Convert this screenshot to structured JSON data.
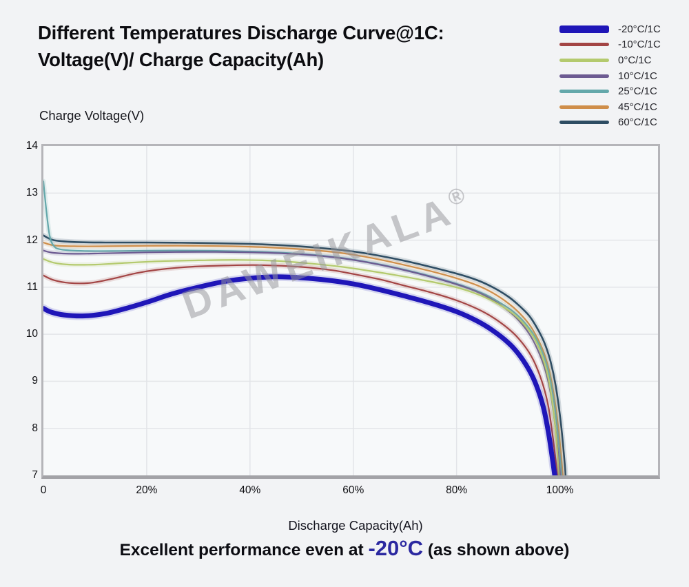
{
  "header": {
    "title_line1": "Different Temperatures Discharge Curve@1C:",
    "title_line2": "Voltage(V)/ Charge Capacity(Ah)"
  },
  "y_axis": {
    "title": "Charge Voltage(V)",
    "ticks": [
      {
        "value": 14,
        "label": "14"
      },
      {
        "value": 13,
        "label": "13"
      },
      {
        "value": 12,
        "label": "12"
      },
      {
        "value": 11,
        "label": "11"
      },
      {
        "value": 10,
        "label": "10"
      },
      {
        "value": 9,
        "label": "9"
      },
      {
        "value": 8,
        "label": "8"
      },
      {
        "value": 7,
        "label": "7"
      }
    ]
  },
  "x_axis": {
    "title": "Discharge Capacity(Ah)",
    "ticks": [
      {
        "value": 0,
        "label": "0"
      },
      {
        "value": 20,
        "label": "20%"
      },
      {
        "value": 40,
        "label": "40%"
      },
      {
        "value": 60,
        "label": "60%"
      },
      {
        "value": 80,
        "label": "80%"
      },
      {
        "value": 100,
        "label": "100%"
      }
    ]
  },
  "watermark": {
    "text": "DAWEIKALA",
    "symbol": "®"
  },
  "footer": {
    "prefix": "Excellent performance even at ",
    "highlight": "-20°C",
    "suffix": " (as shown above)",
    "highlight_color": "#2b28a0"
  },
  "chart_data": {
    "type": "line",
    "title": "Different Temperatures Discharge Curve@1C: Voltage(V)/ Charge Capacity(Ah)",
    "xlabel": "Discharge Capacity(Ah)",
    "ylabel": "Charge Voltage(V)",
    "xlim": [
      0,
      119
    ],
    "ylim": [
      7,
      14
    ],
    "grid": true,
    "legend_position": "top-right",
    "x_unit": "percent of capacity",
    "series": [
      {
        "name": "60°C/1C",
        "color": "#2e4d63",
        "width": 2.6,
        "points": [
          [
            0,
            12.1
          ],
          [
            2,
            12.0
          ],
          [
            6,
            11.96
          ],
          [
            12,
            11.95
          ],
          [
            20,
            11.95
          ],
          [
            30,
            11.94
          ],
          [
            40,
            11.92
          ],
          [
            48,
            11.88
          ],
          [
            55,
            11.82
          ],
          [
            60,
            11.76
          ],
          [
            65,
            11.67
          ],
          [
            70,
            11.56
          ],
          [
            75,
            11.43
          ],
          [
            80,
            11.29
          ],
          [
            84,
            11.15
          ],
          [
            87,
            11.0
          ],
          [
            90,
            10.8
          ],
          [
            92,
            10.62
          ],
          [
            94,
            10.4
          ],
          [
            95.5,
            10.15
          ],
          [
            97,
            9.82
          ],
          [
            98.2,
            9.42
          ],
          [
            99.2,
            8.9
          ],
          [
            100.2,
            8.1
          ],
          [
            100.9,
            7.3
          ],
          [
            101.1,
            7.0
          ]
        ]
      },
      {
        "name": "45°C/1C",
        "color": "#cf8e4a",
        "width": 2.2,
        "points": [
          [
            0,
            11.95
          ],
          [
            2,
            11.89
          ],
          [
            6,
            11.87
          ],
          [
            12,
            11.87
          ],
          [
            20,
            11.88
          ],
          [
            30,
            11.88
          ],
          [
            40,
            11.86
          ],
          [
            48,
            11.82
          ],
          [
            55,
            11.76
          ],
          [
            60,
            11.69
          ],
          [
            65,
            11.59
          ],
          [
            70,
            11.47
          ],
          [
            75,
            11.34
          ],
          [
            80,
            11.19
          ],
          [
            84,
            11.04
          ],
          [
            87,
            10.88
          ],
          [
            90,
            10.66
          ],
          [
            92,
            10.47
          ],
          [
            94,
            10.22
          ],
          [
            95.5,
            9.95
          ],
          [
            97,
            9.58
          ],
          [
            98.2,
            9.1
          ],
          [
            99.2,
            8.45
          ],
          [
            100,
            7.7
          ],
          [
            100.5,
            7.1
          ],
          [
            100.6,
            7.0
          ]
        ]
      },
      {
        "name": "25°C/1C",
        "color": "#64a8ab",
        "width": 2.2,
        "points": [
          [
            0,
            13.25
          ],
          [
            0.6,
            12.6
          ],
          [
            1.2,
            12.1
          ],
          [
            2,
            11.88
          ],
          [
            3.5,
            11.8
          ],
          [
            8,
            11.77
          ],
          [
            15,
            11.77
          ],
          [
            25,
            11.78
          ],
          [
            35,
            11.77
          ],
          [
            45,
            11.74
          ],
          [
            52,
            11.69
          ],
          [
            58,
            11.62
          ],
          [
            63,
            11.53
          ],
          [
            68,
            11.42
          ],
          [
            73,
            11.29
          ],
          [
            78,
            11.14
          ],
          [
            82,
            11.0
          ],
          [
            86,
            10.82
          ],
          [
            89,
            10.63
          ],
          [
            91,
            10.48
          ],
          [
            93,
            10.27
          ],
          [
            95,
            9.98
          ],
          [
            96.5,
            9.65
          ],
          [
            97.7,
            9.25
          ],
          [
            98.7,
            8.7
          ],
          [
            99.5,
            8.0
          ],
          [
            100.1,
            7.3
          ],
          [
            100.3,
            7.0
          ]
        ]
      },
      {
        "name": "10°C/1C",
        "color": "#6d5b92",
        "width": 2.2,
        "points": [
          [
            0,
            11.78
          ],
          [
            2,
            11.73
          ],
          [
            6,
            11.71
          ],
          [
            12,
            11.72
          ],
          [
            20,
            11.74
          ],
          [
            30,
            11.75
          ],
          [
            40,
            11.74
          ],
          [
            48,
            11.71
          ],
          [
            55,
            11.65
          ],
          [
            60,
            11.58
          ],
          [
            65,
            11.48
          ],
          [
            70,
            11.36
          ],
          [
            75,
            11.22
          ],
          [
            80,
            11.06
          ],
          [
            84,
            10.9
          ],
          [
            87,
            10.73
          ],
          [
            90,
            10.5
          ],
          [
            92,
            10.3
          ],
          [
            94,
            10.02
          ],
          [
            95.5,
            9.72
          ],
          [
            97,
            9.3
          ],
          [
            98.2,
            8.75
          ],
          [
            99.2,
            7.95
          ],
          [
            99.9,
            7.2
          ],
          [
            100.1,
            7.0
          ]
        ]
      },
      {
        "name": "0°C/1C",
        "color": "#b4ca6e",
        "width": 2.2,
        "points": [
          [
            0,
            11.6
          ],
          [
            2,
            11.52
          ],
          [
            5,
            11.48
          ],
          [
            10,
            11.48
          ],
          [
            15,
            11.51
          ],
          [
            22,
            11.55
          ],
          [
            30,
            11.57
          ],
          [
            38,
            11.58
          ],
          [
            45,
            11.56
          ],
          [
            52,
            11.5
          ],
          [
            58,
            11.43
          ],
          [
            63,
            11.35
          ],
          [
            68,
            11.26
          ],
          [
            73,
            11.16
          ],
          [
            78,
            11.05
          ],
          [
            82,
            10.93
          ],
          [
            86,
            10.76
          ],
          [
            89,
            10.58
          ],
          [
            91,
            10.43
          ],
          [
            93,
            10.22
          ],
          [
            95,
            9.92
          ],
          [
            96.5,
            9.55
          ],
          [
            97.7,
            9.1
          ],
          [
            98.6,
            8.5
          ],
          [
            99.3,
            7.8
          ],
          [
            99.8,
            7.0
          ]
        ]
      },
      {
        "name": "-10°C/1C",
        "color": "#a34545",
        "width": 2.2,
        "points": [
          [
            0,
            11.25
          ],
          [
            2,
            11.15
          ],
          [
            5,
            11.09
          ],
          [
            9,
            11.09
          ],
          [
            13,
            11.17
          ],
          [
            18,
            11.3
          ],
          [
            22,
            11.37
          ],
          [
            28,
            11.43
          ],
          [
            35,
            11.46
          ],
          [
            42,
            11.47
          ],
          [
            50,
            11.43
          ],
          [
            56,
            11.36
          ],
          [
            60,
            11.28
          ],
          [
            65,
            11.17
          ],
          [
            70,
            11.03
          ],
          [
            75,
            10.89
          ],
          [
            80,
            10.72
          ],
          [
            84,
            10.54
          ],
          [
            87,
            10.36
          ],
          [
            90,
            10.12
          ],
          [
            92,
            9.91
          ],
          [
            94,
            9.62
          ],
          [
            95.5,
            9.3
          ],
          [
            96.8,
            8.9
          ],
          [
            97.8,
            8.45
          ],
          [
            98.6,
            7.85
          ],
          [
            99.2,
            7.3
          ],
          [
            99.5,
            7.0
          ]
        ]
      },
      {
        "name": "-20°C/1C",
        "color": "#1f16b8",
        "width": 7,
        "points": [
          [
            0,
            10.55
          ],
          [
            1.5,
            10.47
          ],
          [
            4,
            10.41
          ],
          [
            8,
            10.39
          ],
          [
            12,
            10.44
          ],
          [
            16,
            10.55
          ],
          [
            20,
            10.68
          ],
          [
            25,
            10.86
          ],
          [
            30,
            11.0
          ],
          [
            35,
            11.12
          ],
          [
            40,
            11.19
          ],
          [
            45,
            11.22
          ],
          [
            50,
            11.2
          ],
          [
            55,
            11.15
          ],
          [
            60,
            11.07
          ],
          [
            65,
            10.95
          ],
          [
            70,
            10.81
          ],
          [
            75,
            10.66
          ],
          [
            80,
            10.48
          ],
          [
            84,
            10.28
          ],
          [
            87,
            10.08
          ],
          [
            90,
            9.82
          ],
          [
            92,
            9.58
          ],
          [
            94,
            9.25
          ],
          [
            95.5,
            8.9
          ],
          [
            96.8,
            8.45
          ],
          [
            97.8,
            7.9
          ],
          [
            98.5,
            7.4
          ],
          [
            99,
            7.0
          ]
        ]
      }
    ]
  }
}
